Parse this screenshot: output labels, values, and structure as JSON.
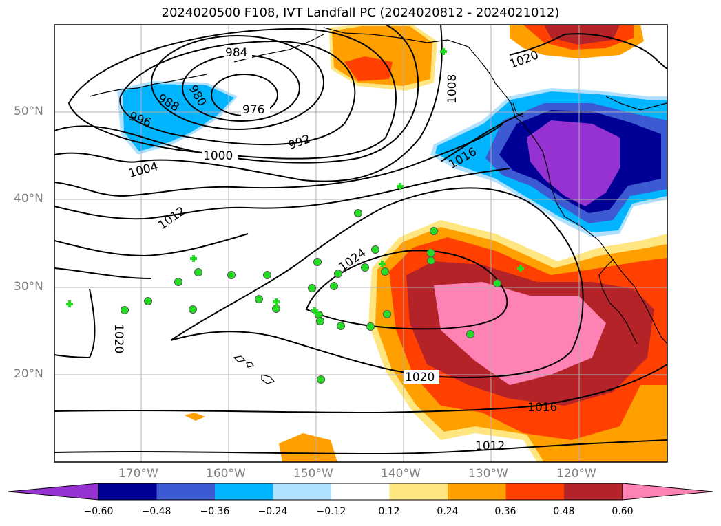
{
  "title": "2024020500 F108, IVT Landfall PC (2024020812 - 2024021012)",
  "map": {
    "lat_labels": [
      "50°N",
      "40°N",
      "30°N",
      "20°N"
    ],
    "lon_labels": [
      "170°W",
      "160°W",
      "150°W",
      "140°W",
      "130°W",
      "120°W"
    ],
    "isobar_labels": [
      "976",
      "980",
      "984",
      "988",
      "992",
      "996",
      "1000",
      "1004",
      "1008",
      "1012",
      "1016",
      "1020",
      "1024",
      "1020",
      "1020",
      "1016",
      "1012"
    ],
    "marker_color": "#22dd22",
    "fill_colors": {
      "pink": "#ff82b4",
      "dark_red": "#b42328",
      "red_orange": "#ff4000",
      "orange": "#ffa000",
      "light_yellow": "#ffe680",
      "light_blue": "#afe1ff",
      "cyan": "#00b4ff",
      "mid_blue": "#3c5ad2",
      "navy": "#000096",
      "purple": "#9632d2"
    }
  },
  "colorbar": {
    "colors": [
      "#9632d2",
      "#000096",
      "#3c5ad2",
      "#00b4ff",
      "#afe1ff",
      "#ffffff",
      "#ffe680",
      "#ffa000",
      "#ff4000",
      "#b42328",
      "#ff82b4"
    ],
    "tick_labels": [
      "−0.60",
      "−0.48",
      "−0.36",
      "−0.24",
      "−0.12",
      "0.12",
      "0.24",
      "0.36",
      "0.48",
      "0.60"
    ]
  }
}
